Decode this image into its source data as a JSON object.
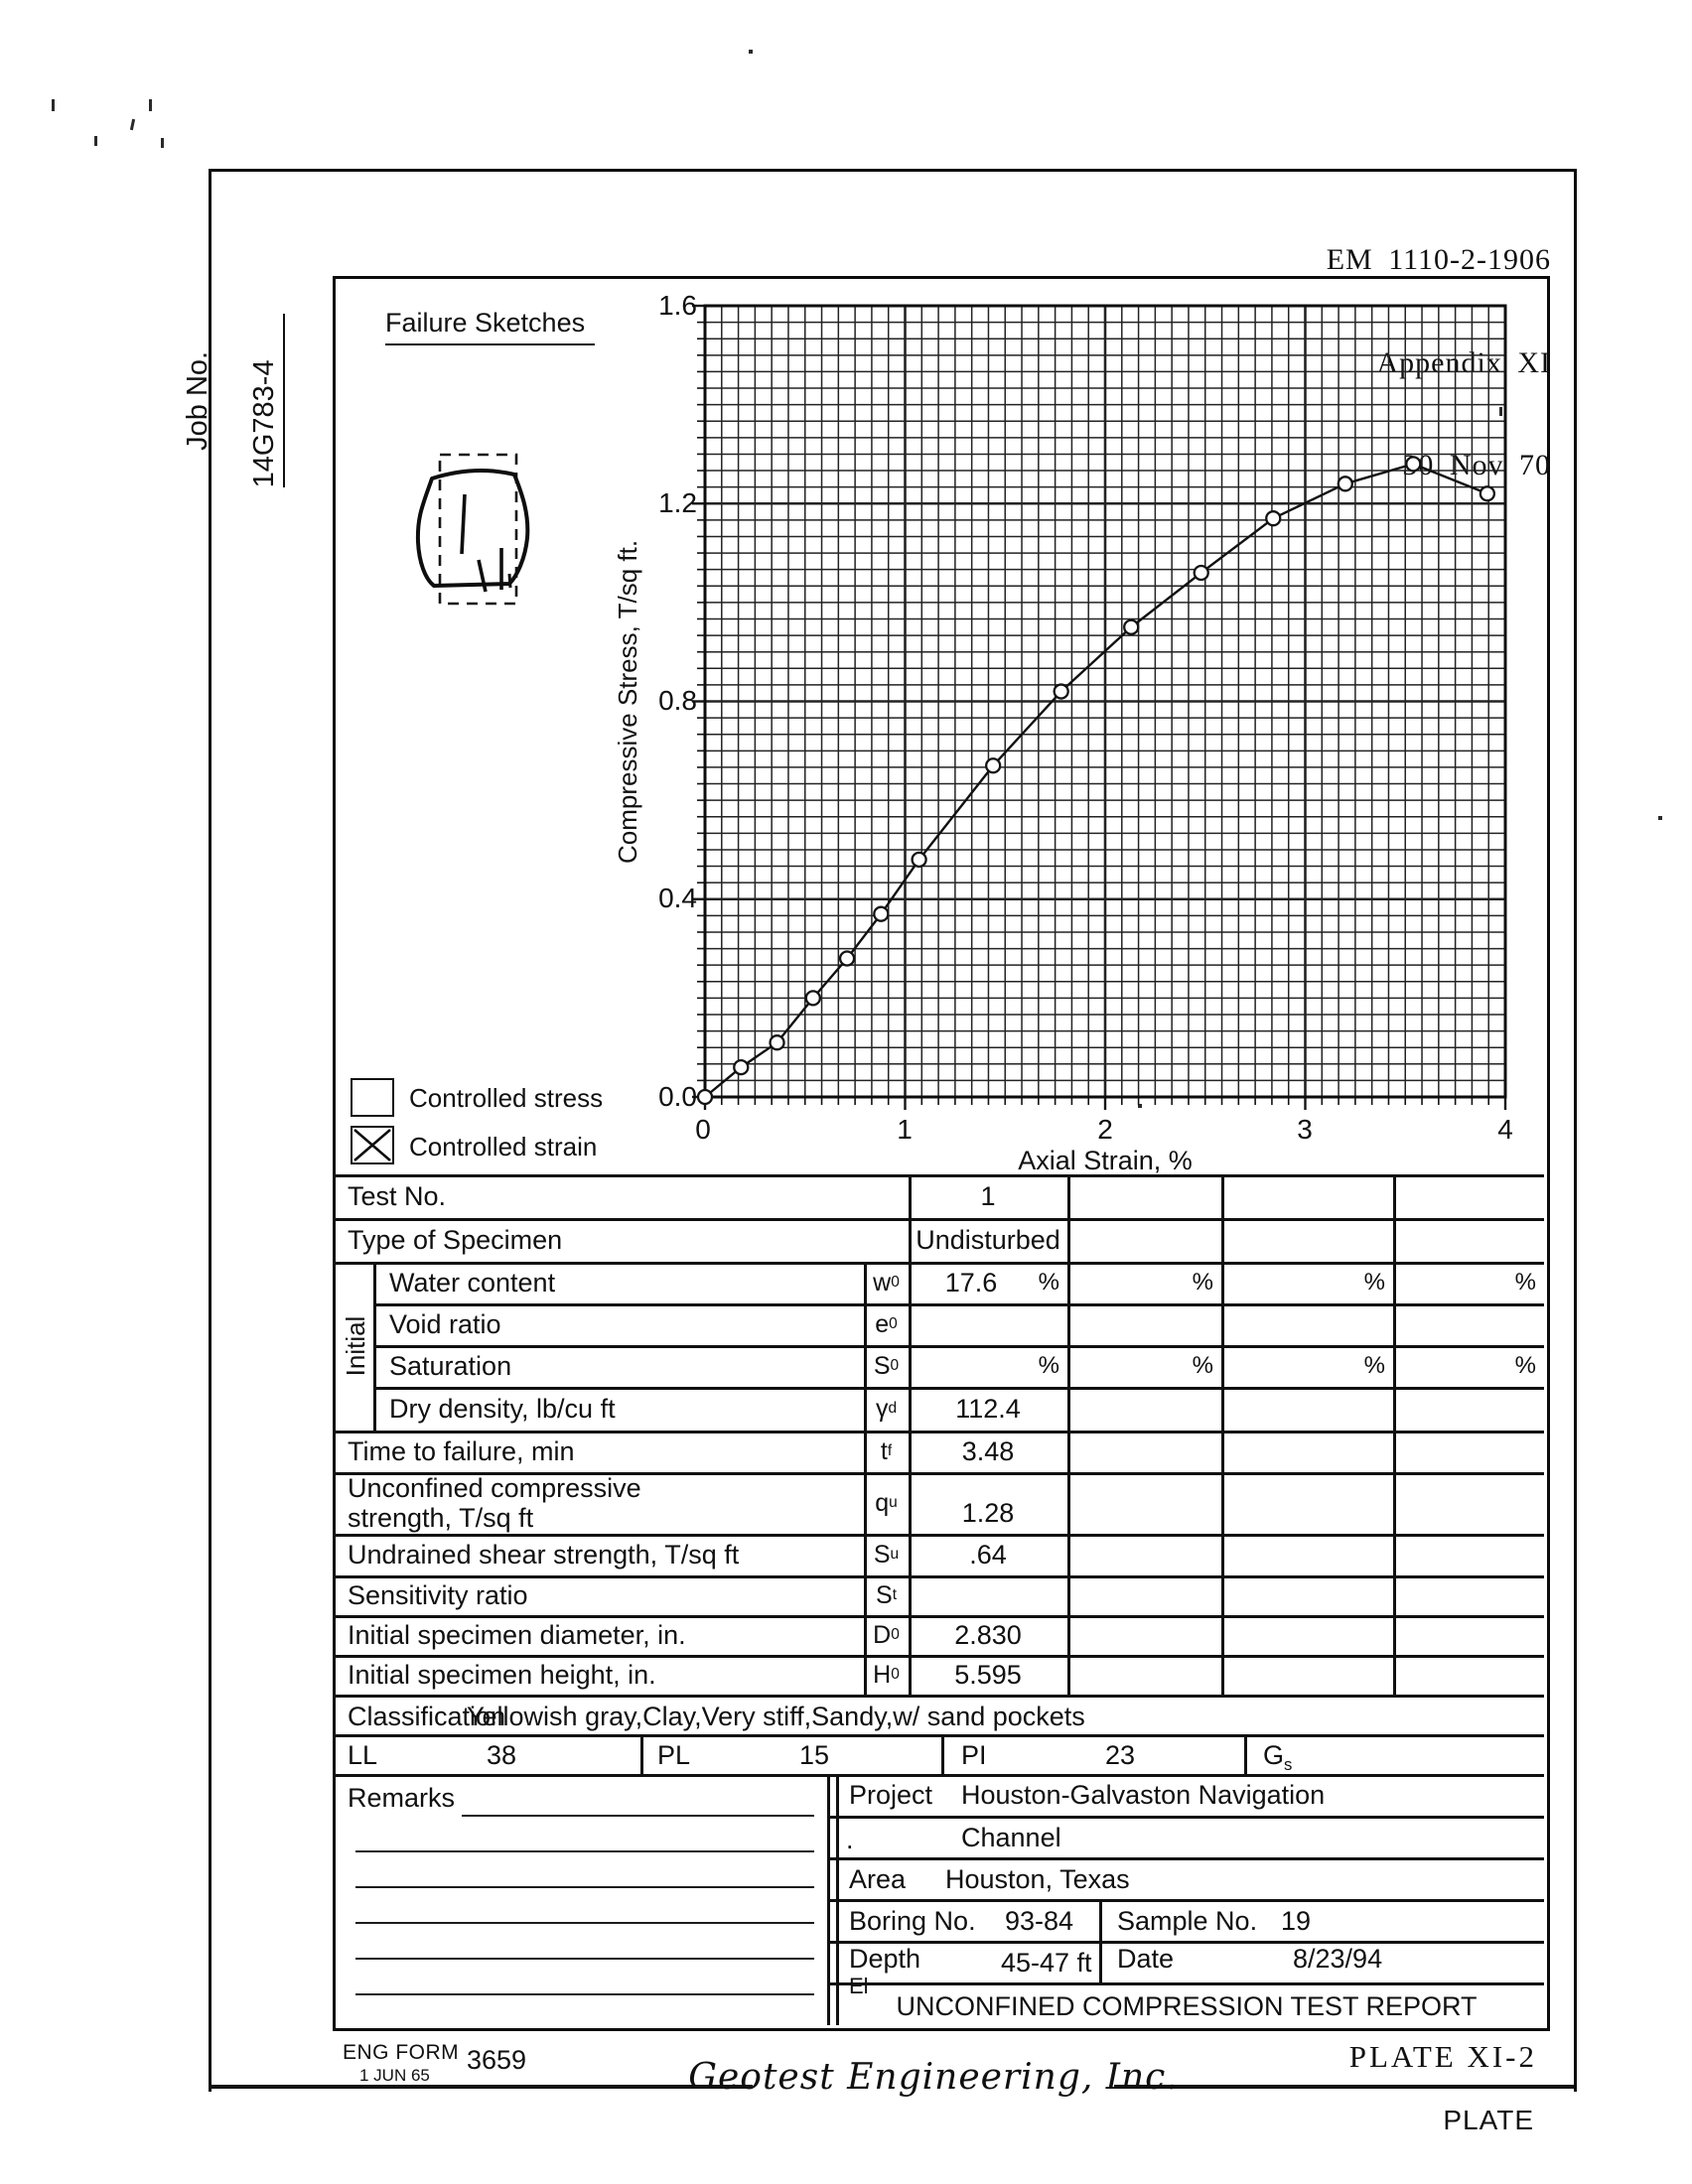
{
  "header": {
    "em": "EM 1110-2-1906",
    "appendix": "Appendix XI",
    "date": "30 Nov 70"
  },
  "sidebar": {
    "job_label": "Job No.",
    "job_value": "14G783-4"
  },
  "chart": {
    "section_title": "Failure Sketches",
    "legend": [
      {
        "label": "Controlled stress",
        "checked": false
      },
      {
        "label": "Controlled strain",
        "checked": true
      }
    ]
  },
  "chart_data": {
    "type": "line",
    "x": [
      0,
      0.18,
      0.36,
      0.54,
      0.71,
      0.88,
      1.07,
      1.44,
      1.78,
      2.13,
      2.48,
      2.84,
      3.2,
      3.54,
      3.91
    ],
    "y": [
      0,
      0.06,
      0.11,
      0.2,
      0.28,
      0.37,
      0.48,
      0.67,
      0.82,
      0.95,
      1.06,
      1.17,
      1.24,
      1.28,
      1.22
    ],
    "title": "",
    "xlabel": "Axial Strain, %",
    "ylabel": "Compressive Stress, T/sq ft.",
    "xlim": [
      0,
      4
    ],
    "ylim": [
      0,
      1.6
    ],
    "xticks": [
      "0",
      "1",
      "2",
      "3",
      "4"
    ],
    "yticks": [
      "0.0",
      "0.4",
      "0.8",
      "1.2",
      "1.6"
    ],
    "grid": "on",
    "minor_per_major": 12,
    "marker": "open-circle"
  },
  "table": {
    "group_label": "Initial",
    "rows": [
      {
        "label": "Test No.",
        "sym": "",
        "sub": "",
        "values": [
          "1",
          "",
          "",
          ""
        ],
        "units": [
          "",
          "",
          "",
          ""
        ]
      },
      {
        "label": "Type of Specimen",
        "sym": "",
        "sub": "",
        "values": [
          "Undisturbed",
          "",
          "",
          ""
        ],
        "units": [
          "",
          "",
          "",
          ""
        ]
      },
      {
        "label": "Water content",
        "sym": "w",
        "sub": "0",
        "values": [
          "17.6",
          "",
          "",
          ""
        ],
        "units": [
          "%",
          "%",
          "%",
          "%"
        ]
      },
      {
        "label": "Void ratio",
        "sym": "e",
        "sub": "0",
        "values": [
          "",
          "",
          "",
          ""
        ],
        "units": [
          "",
          "",
          "",
          ""
        ]
      },
      {
        "label": "Saturation",
        "sym": "S",
        "sub": "0",
        "values": [
          "",
          "",
          "",
          ""
        ],
        "units": [
          "%",
          "%",
          "%",
          "%"
        ]
      },
      {
        "label": "Dry density, lb/cu ft",
        "sym": "γ",
        "sub": "d",
        "values": [
          "112.4",
          "",
          "",
          ""
        ],
        "units": [
          "",
          "",
          "",
          ""
        ]
      },
      {
        "label": "Time to failure, min",
        "sym": "t",
        "sub": "f",
        "values": [
          "3.48",
          "",
          "",
          ""
        ],
        "units": [
          "",
          "",
          "",
          ""
        ]
      },
      {
        "label": "Unconfined compressive\nstrength, T/sq ft",
        "sym": "q",
        "sub": "u",
        "values": [
          "1.28",
          "",
          "",
          ""
        ],
        "units": [
          "",
          "",
          "",
          ""
        ]
      },
      {
        "label": "Undrained shear strength, T/sq ft",
        "sym": "S",
        "sub": "u",
        "values": [
          ".64",
          "",
          "",
          ""
        ],
        "units": [
          "",
          "",
          "",
          ""
        ]
      },
      {
        "label": "Sensitivity ratio",
        "sym": "S",
        "sub": "t",
        "values": [
          "",
          "",
          "",
          ""
        ],
        "units": [
          "",
          "",
          "",
          ""
        ]
      },
      {
        "label": "Initial specimen diameter, in.",
        "sym": "D",
        "sub": "0",
        "values": [
          "2.830",
          "",
          "",
          ""
        ],
        "units": [
          "",
          "",
          "",
          ""
        ]
      },
      {
        "label": "Initial specimen height, in.",
        "sym": "H",
        "sub": "0",
        "values": [
          "5.595",
          "",
          "",
          ""
        ],
        "units": [
          "",
          "",
          "",
          ""
        ]
      }
    ],
    "classification_label": "Classification",
    "classification_value": "Yellowish gray,Clay,Very stiff,Sandy,w/ sand pockets",
    "atterberg": [
      {
        "label": "LL",
        "sub": "",
        "value": "38"
      },
      {
        "label": "PL",
        "sub": "",
        "value": "15"
      },
      {
        "label": "PI",
        "sub": "",
        "value": "23"
      },
      {
        "label": "G",
        "sub": "s",
        "value": ""
      }
    ],
    "remarks_label": "Remarks"
  },
  "project": {
    "project_label": "Project",
    "project_line1": "Houston-Galvaston Navigation",
    "dot": ".",
    "project_line2": "Channel",
    "area_label": "Area",
    "area_value": "Houston, Texas",
    "boring_label": "Boring No.",
    "boring_value": "93-84",
    "sample_label": "Sample No.",
    "sample_value": "19",
    "depth_label": "Depth",
    "el_label": "El",
    "depth_value": "45-47 ft",
    "date_label": "Date",
    "date_value": "8/23/94",
    "report_title": "UNCONFINED COMPRESSION TEST REPORT"
  },
  "footer": {
    "eng_form": "ENG FORM",
    "form_number": "3659",
    "form_date": "1 JUN 65",
    "plate": "PLATE XI-2",
    "company": "Geotest Engineering, Inc.",
    "plate_word": "PLATE"
  }
}
